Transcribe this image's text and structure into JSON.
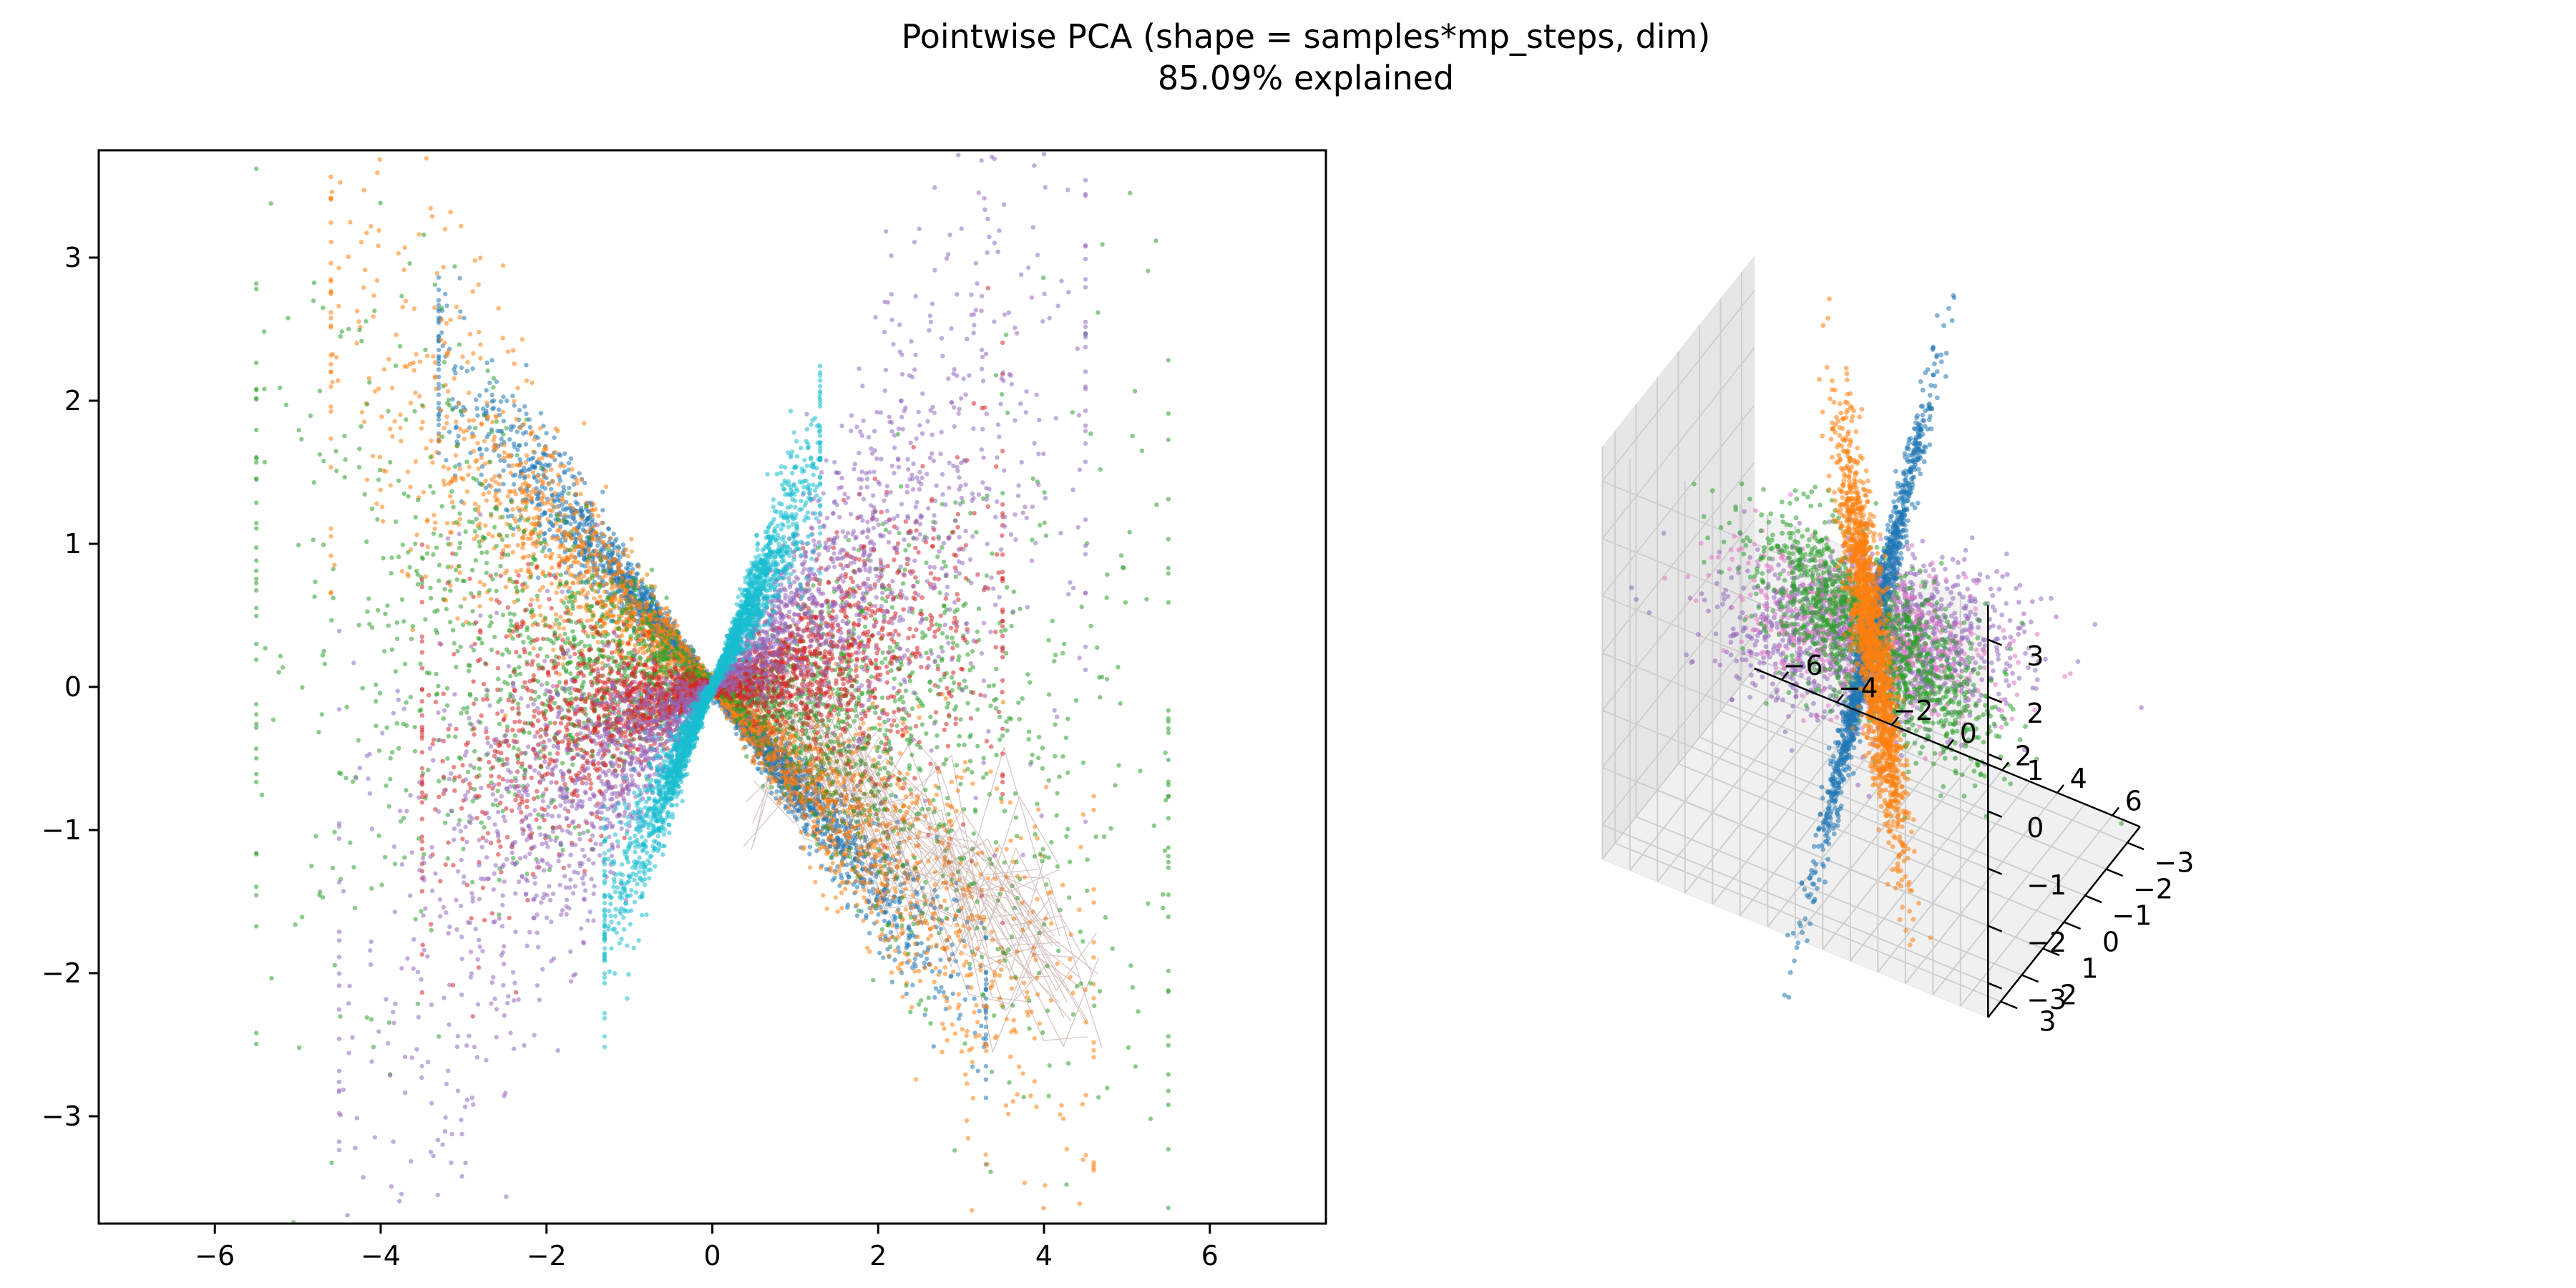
{
  "figure": {
    "title_line1": "Pointwise PCA (shape = samples*mp_steps, dim)",
    "title_line2": "85.09% explained"
  },
  "colors": {
    "c0": "#1f77b4",
    "c1": "#ff7f0e",
    "c2": "#2ca02c",
    "c3": "#d62728",
    "c4": "#9467bd",
    "c5": "#8c564b",
    "c6": "#e377c2",
    "c9": "#17becf"
  },
  "chart_data": [
    {
      "type": "scatter",
      "projection": "2d",
      "xlim": [
        -7.4,
        7.4
      ],
      "ylim": [
        -3.75,
        3.75
      ],
      "xticks": [
        -6,
        -4,
        -2,
        0,
        2,
        4,
        6
      ],
      "yticks": [
        -3,
        -2,
        -1,
        0,
        1,
        2,
        3
      ],
      "xtick_labels": [
        "−6",
        "−4",
        "−2",
        "0",
        "2",
        "4",
        "6"
      ],
      "ytick_labels": [
        "−3",
        "−2",
        "−1",
        "0",
        "1",
        "2",
        "3"
      ],
      "grid": false,
      "series": [
        {
          "color": "c0",
          "slope": -0.68,
          "spread": 0.12,
          "xrange": [
            -3.3,
            3.3
          ]
        },
        {
          "color": "c1",
          "slope": -0.55,
          "spread": 0.22,
          "xrange": [
            -5.0,
            4.6
          ]
        },
        {
          "color": "c2",
          "slope": -0.12,
          "spread": 0.35,
          "xrange": [
            -5.5,
            5.5
          ]
        },
        {
          "color": "c3",
          "slope": 0.15,
          "spread": 0.25,
          "xrange": [
            -3.5,
            3.5
          ]
        },
        {
          "color": "c4",
          "slope": 0.5,
          "spread": 0.35,
          "xrange": [
            -4.5,
            4.5
          ]
        },
        {
          "color": "c9",
          "slope": 1.25,
          "spread": 0.3,
          "xrange": [
            -1.3,
            1.3
          ]
        }
      ]
    },
    {
      "type": "scatter",
      "projection": "3d",
      "xticks": [
        -6,
        -4,
        -2,
        0,
        2,
        4,
        6
      ],
      "yticks": [
        -3,
        -2,
        -1,
        0,
        1,
        2,
        3
      ],
      "zticks": [
        -3,
        -2,
        -1,
        0,
        1,
        2,
        3
      ],
      "xtick_labels": [
        "−6",
        "−4",
        "−2",
        "0",
        "2",
        "4",
        "6"
      ],
      "ytick_labels": [
        "−3",
        "−2",
        "−1",
        "0",
        "1",
        "2",
        "3"
      ],
      "ztick_labels": [
        "−3",
        "−2",
        "−1",
        "0",
        "1",
        "2",
        "3"
      ],
      "grid": true
    }
  ]
}
